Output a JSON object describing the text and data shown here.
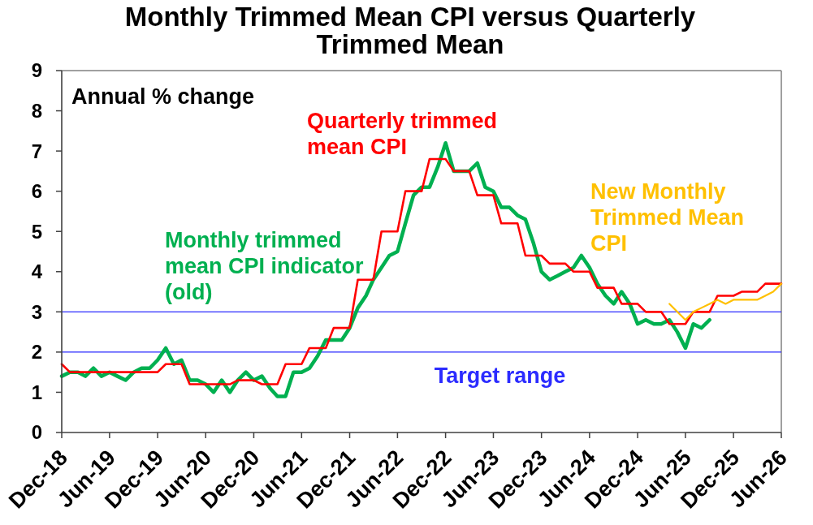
{
  "chart_data": {
    "type": "line",
    "title": "Monthly Trimmed Mean CPI versus Quarterly Trimmed Mean",
    "annotations": [
      "Annual % change"
    ],
    "x": [
      "2018-12",
      "2019-01",
      "2019-02",
      "2019-03",
      "2019-04",
      "2019-05",
      "2019-06",
      "2019-07",
      "2019-08",
      "2019-09",
      "2019-10",
      "2019-11",
      "2019-12",
      "2020-01",
      "2020-02",
      "2020-03",
      "2020-04",
      "2020-05",
      "2020-06",
      "2020-07",
      "2020-08",
      "2020-09",
      "2020-10",
      "2020-11",
      "2020-12",
      "2021-01",
      "2021-02",
      "2021-03",
      "2021-04",
      "2021-05",
      "2021-06",
      "2021-07",
      "2021-08",
      "2021-09",
      "2021-10",
      "2021-11",
      "2021-12",
      "2022-01",
      "2022-02",
      "2022-03",
      "2022-04",
      "2022-05",
      "2022-06",
      "2022-07",
      "2022-08",
      "2022-09",
      "2022-10",
      "2022-11",
      "2022-12",
      "2023-01",
      "2023-02",
      "2023-03",
      "2023-04",
      "2023-05",
      "2023-06",
      "2023-07",
      "2023-08",
      "2023-09",
      "2023-10",
      "2023-11",
      "2023-12",
      "2024-01",
      "2024-02",
      "2024-03",
      "2024-04",
      "2024-05",
      "2024-06",
      "2024-07",
      "2024-08",
      "2024-09",
      "2024-10",
      "2024-11",
      "2024-12",
      "2025-01",
      "2025-02",
      "2025-03",
      "2025-04",
      "2025-05",
      "2025-06",
      "2025-07",
      "2025-08",
      "2025-09",
      "2025-10",
      "2025-11",
      "2025-12",
      "2026-01",
      "2026-02",
      "2026-03",
      "2026-04",
      "2026-05",
      "2026-06"
    ],
    "xlim": [
      "2018-12",
      "2026-06"
    ],
    "xticks": [
      {
        "value": "2018-12",
        "label": "Dec-18"
      },
      {
        "value": "2019-06",
        "label": "Jun-19"
      },
      {
        "value": "2019-12",
        "label": "Dec-19"
      },
      {
        "value": "2020-06",
        "label": "Jun-20"
      },
      {
        "value": "2020-12",
        "label": "Dec-20"
      },
      {
        "value": "2021-06",
        "label": "Jun-21"
      },
      {
        "value": "2021-12",
        "label": "Dec-21"
      },
      {
        "value": "2022-06",
        "label": "Jun-22"
      },
      {
        "value": "2022-12",
        "label": "Dec-22"
      },
      {
        "value": "2023-06",
        "label": "Jun-23"
      },
      {
        "value": "2023-12",
        "label": "Dec-23"
      },
      {
        "value": "2024-06",
        "label": "Jun-24"
      },
      {
        "value": "2024-12",
        "label": "Dec-24"
      },
      {
        "value": "2025-06",
        "label": "Jun-25"
      },
      {
        "value": "2025-12",
        "label": "Dec-25"
      },
      {
        "value": "2026-06",
        "label": "Jun-26"
      }
    ],
    "ylim": [
      0,
      9
    ],
    "yticks": [
      0,
      1,
      2,
      3,
      4,
      5,
      6,
      7,
      8,
      9
    ],
    "ref_lines": [
      {
        "axis": "y",
        "value": 3,
        "color": "#2b2bff"
      },
      {
        "axis": "y",
        "value": 2,
        "color": "#2b2bff",
        "label": "Target range"
      }
    ],
    "series": [
      {
        "name": "Monthly trimmed mean CPI indicator (old)",
        "color": "#00b050",
        "values": [
          1.4,
          1.5,
          1.5,
          1.4,
          1.6,
          1.4,
          1.5,
          1.4,
          1.3,
          1.5,
          1.6,
          1.6,
          1.8,
          2.1,
          1.7,
          1.8,
          1.3,
          1.3,
          1.2,
          1.0,
          1.3,
          1.0,
          1.3,
          1.5,
          1.3,
          1.4,
          1.1,
          0.9,
          0.9,
          1.5,
          1.5,
          1.6,
          1.9,
          2.3,
          2.3,
          2.3,
          2.6,
          3.1,
          3.4,
          3.8,
          4.1,
          4.4,
          4.5,
          5.2,
          5.9,
          6.1,
          6.1,
          6.6,
          7.2,
          6.5,
          6.5,
          6.5,
          6.7,
          6.1,
          6.0,
          5.6,
          5.6,
          5.4,
          5.3,
          4.7,
          4.0,
          3.8,
          3.9,
          4.0,
          4.1,
          4.4,
          4.1,
          3.7,
          3.4,
          3.2,
          3.5,
          3.2,
          2.7,
          2.8,
          2.7,
          2.7,
          2.8,
          2.5,
          2.1,
          2.7,
          2.6,
          2.8,
          null,
          null,
          null,
          null,
          null,
          null,
          null,
          null,
          null
        ]
      },
      {
        "name": "Quarterly trimmed mean CPI",
        "color": "#ff0000",
        "values": [
          1.7,
          1.5,
          1.5,
          1.5,
          1.5,
          1.5,
          1.5,
          1.5,
          1.5,
          1.5,
          1.5,
          1.5,
          1.5,
          1.7,
          1.7,
          1.7,
          1.2,
          1.2,
          1.2,
          1.2,
          1.2,
          1.2,
          1.3,
          1.3,
          1.3,
          1.2,
          1.2,
          1.2,
          1.7,
          1.7,
          1.7,
          2.1,
          2.1,
          2.1,
          2.6,
          2.6,
          2.6,
          3.8,
          3.8,
          3.8,
          5.0,
          5.0,
          5.0,
          6.0,
          6.0,
          6.0,
          6.8,
          6.8,
          6.8,
          6.5,
          6.5,
          6.5,
          5.9,
          5.9,
          5.9,
          5.2,
          5.2,
          5.2,
          4.4,
          4.4,
          4.4,
          4.2,
          4.2,
          4.2,
          4.0,
          4.0,
          4.0,
          3.6,
          3.6,
          3.6,
          3.2,
          3.2,
          3.2,
          3.0,
          3.0,
          3.0,
          2.7,
          2.7,
          2.7,
          3.0,
          3.0,
          3.0,
          3.4,
          3.4,
          3.4,
          3.5,
          3.5,
          3.5,
          3.7,
          3.7,
          3.7
        ]
      },
      {
        "name": "New Monthly Trimmed Mean CPI",
        "color": "#ffc000",
        "x": [
          "2025-04",
          "2025-05",
          "2025-06",
          "2025-07",
          "2025-08",
          "2025-09",
          "2025-10",
          "2025-11",
          "2025-12",
          "2026-01",
          "2026-02",
          "2026-03",
          "2026-04",
          "2026-05",
          "2026-06"
        ],
        "values": [
          3.2,
          3.0,
          2.8,
          3.0,
          3.1,
          3.2,
          3.3,
          3.2,
          3.3,
          3.3,
          3.3,
          3.3,
          3.4,
          3.5,
          3.7
        ]
      }
    ]
  }
}
